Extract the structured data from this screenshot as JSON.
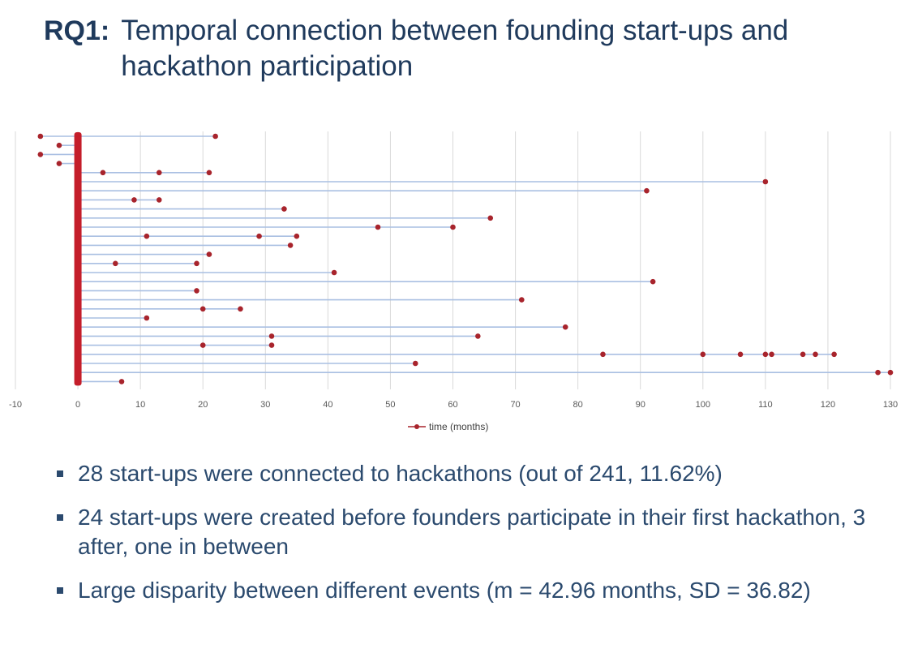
{
  "header": {
    "rq_label": "RQ1:",
    "title": "Temporal connection between founding start-ups and hackathon participation"
  },
  "chart_data": {
    "type": "line",
    "title": "",
    "xlabel": "",
    "ylabel": "",
    "xlim": [
      -10,
      130
    ],
    "x_ticks": [
      -10,
      0,
      10,
      20,
      30,
      40,
      50,
      60,
      70,
      80,
      90,
      100,
      110,
      120,
      130
    ],
    "grid": "vertical",
    "legend": {
      "position": "bottom-center",
      "entries": [
        "time (months)"
      ]
    },
    "colors": {
      "marker": "#a8242c",
      "line": "#a9bfe2",
      "zero_bar": "#c41e2a",
      "grid": "#d9d9d9"
    },
    "series": [
      {
        "values": [
          -6,
          0,
          22
        ]
      },
      {
        "values": [
          -3,
          0
        ]
      },
      {
        "values": [
          -6,
          0
        ]
      },
      {
        "values": [
          -3,
          0
        ]
      },
      {
        "values": [
          0,
          4,
          13,
          21
        ]
      },
      {
        "values": [
          0,
          110
        ]
      },
      {
        "values": [
          0,
          91
        ]
      },
      {
        "values": [
          0,
          9,
          13
        ]
      },
      {
        "values": [
          0,
          33
        ]
      },
      {
        "values": [
          0,
          66
        ]
      },
      {
        "values": [
          0,
          48,
          60
        ]
      },
      {
        "values": [
          0,
          11,
          29,
          35
        ]
      },
      {
        "values": [
          0,
          34
        ]
      },
      {
        "values": [
          0,
          21
        ]
      },
      {
        "values": [
          0,
          6,
          19
        ]
      },
      {
        "values": [
          0,
          41
        ]
      },
      {
        "values": [
          0,
          92
        ]
      },
      {
        "values": [
          0,
          19
        ]
      },
      {
        "values": [
          0,
          71
        ]
      },
      {
        "values": [
          0,
          20,
          26
        ]
      },
      {
        "values": [
          0,
          11
        ]
      },
      {
        "values": [
          0,
          78
        ]
      },
      {
        "values": [
          0,
          31,
          64
        ]
      },
      {
        "values": [
          0,
          20,
          31
        ]
      },
      {
        "values": [
          0,
          84,
          100,
          106,
          110,
          111,
          116,
          118,
          121
        ]
      },
      {
        "values": [
          0,
          54
        ]
      },
      {
        "values": [
          0,
          128,
          130
        ]
      },
      {
        "values": [
          0,
          7
        ]
      }
    ]
  },
  "bullets": [
    "28 start-ups were connected to hackathons (out of 241, 11.62%)",
    "24 start-ups were created before founders participate in their first hackathon, 3 after, one in between",
    "Large disparity between different events (m = 42.96 months, SD = 36.82)"
  ]
}
